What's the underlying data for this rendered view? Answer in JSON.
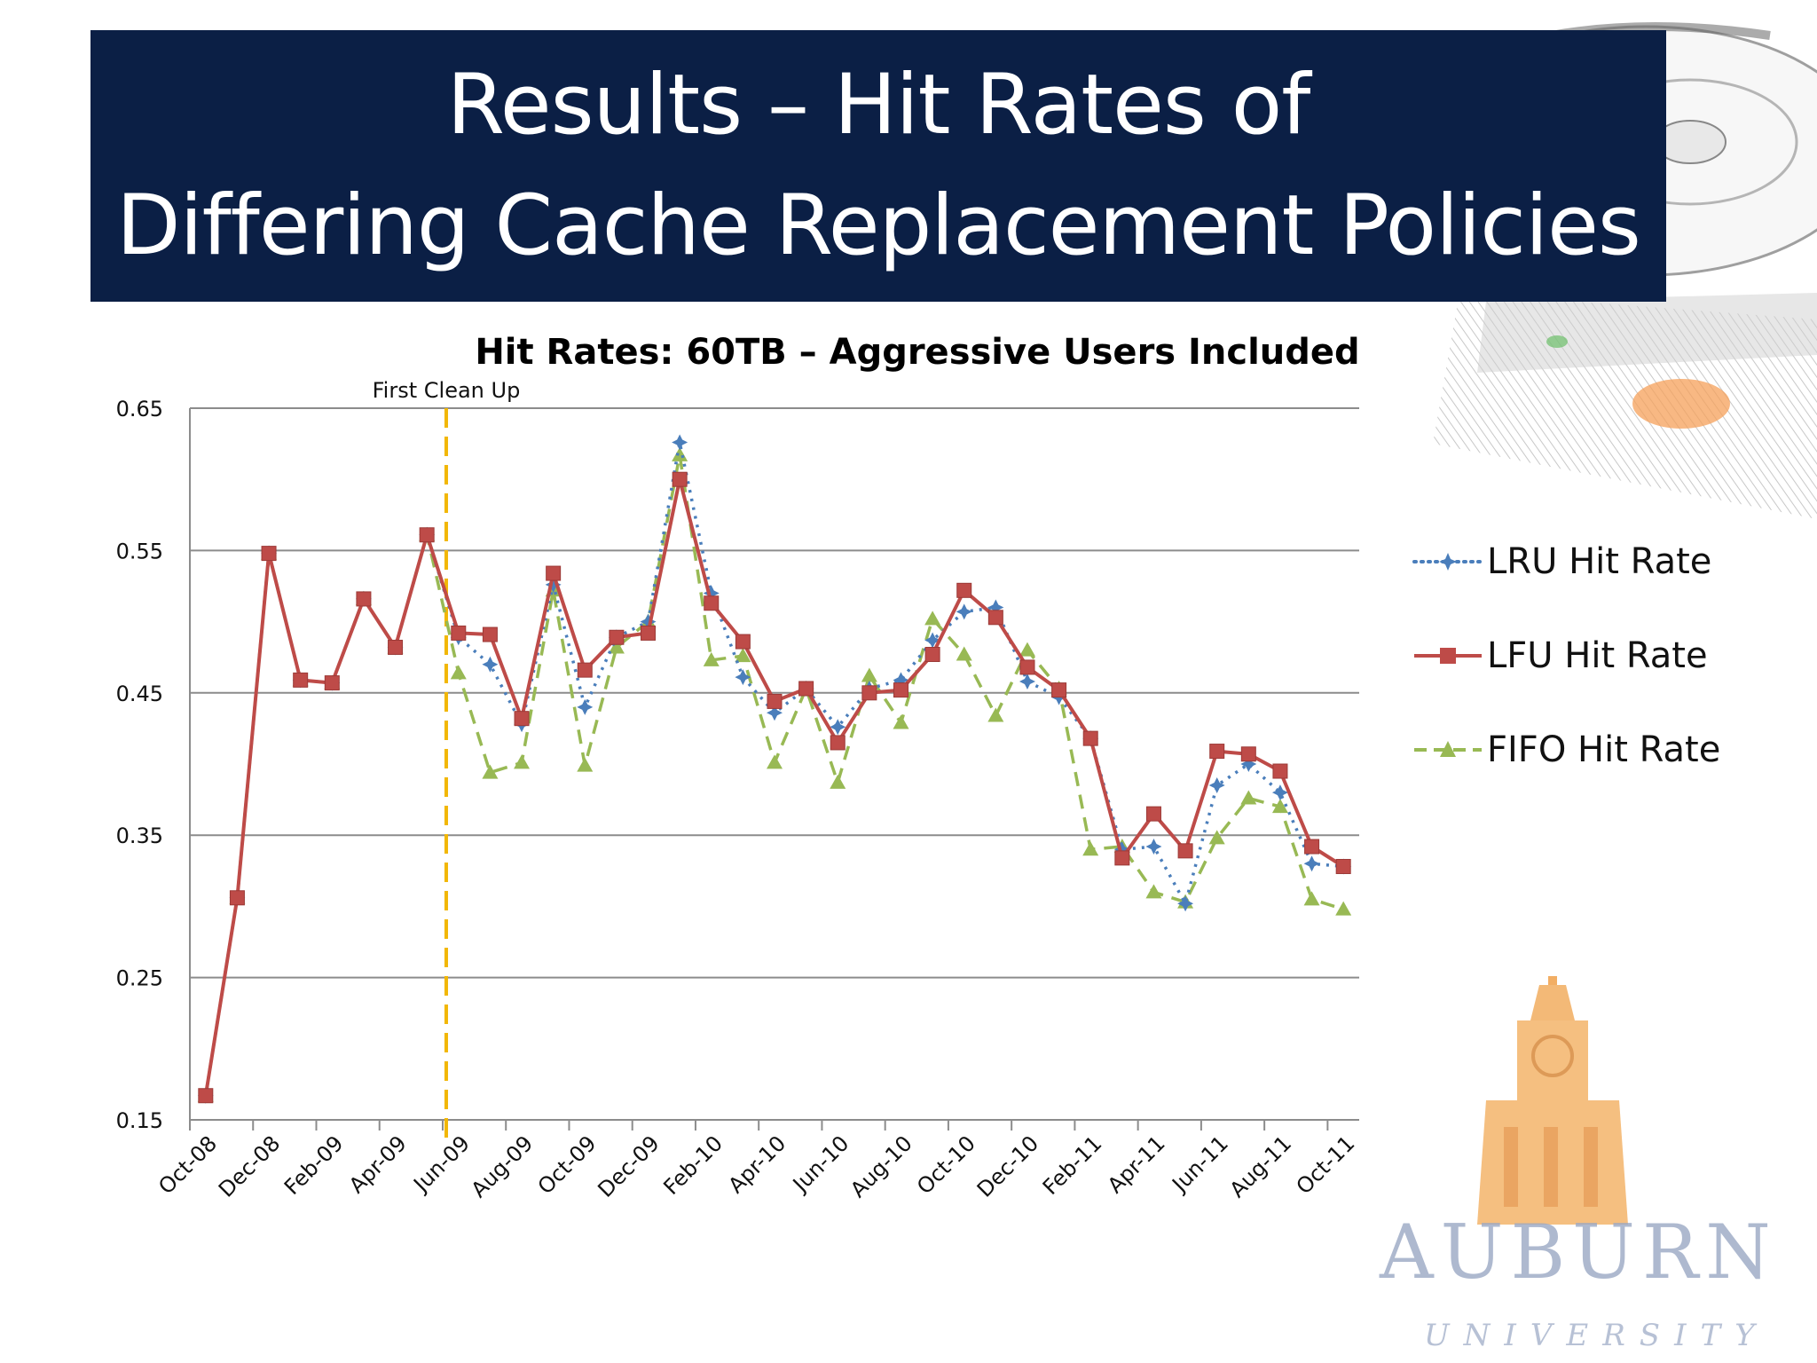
{
  "slide": {
    "title_line1": "Results – Hit Rates of",
    "title_line2": "Differing Cache Replacement Policies",
    "logo_text": "AUBURN",
    "logo_subtext": "UNIVERSITY"
  },
  "colors": {
    "banner": "#0b1f45",
    "lru": "#4a7ebb",
    "lfu": "#be4b48",
    "fifo": "#98b954",
    "cleanup_line": "#f2b705",
    "grid": "#8c8c8c"
  },
  "chart_data": {
    "type": "line",
    "title": "Hit Rates: 60TB – Aggressive Users Included",
    "xlabel": "",
    "ylabel": "",
    "ylim": [
      0.15,
      0.65
    ],
    "yticks": [
      0.15,
      0.25,
      0.35,
      0.45,
      0.55,
      0.65
    ],
    "ytick_labels": [
      "0.15",
      "0.25",
      "0.35",
      "0.45",
      "0.55",
      "0.65"
    ],
    "grid": true,
    "legend_position": "right",
    "categories": [
      "Oct-08",
      "Nov-08",
      "Dec-08",
      "Jan-09",
      "Feb-09",
      "Mar-09",
      "Apr-09",
      "May-09",
      "Jun-09",
      "Jul-09",
      "Aug-09",
      "Sep-09",
      "Oct-09",
      "Nov-09",
      "Dec-09",
      "Jan-10",
      "Feb-10",
      "Mar-10",
      "Apr-10",
      "May-10",
      "Jun-10",
      "Jul-10",
      "Aug-10",
      "Sep-10",
      "Oct-10",
      "Nov-10",
      "Dec-10",
      "Jan-11",
      "Feb-11",
      "Mar-11",
      "Apr-11",
      "May-11",
      "Jun-11",
      "Jul-11",
      "Aug-11",
      "Sep-11",
      "Oct-11"
    ],
    "xtick_labels": [
      "Oct-08",
      "Dec-08",
      "Feb-09",
      "Apr-09",
      "Jun-09",
      "Aug-09",
      "Oct-09",
      "Dec-09",
      "Feb-10",
      "Apr-10",
      "Jun-10",
      "Aug-10",
      "Oct-10",
      "Dec-10",
      "Feb-11",
      "Apr-11",
      "Jun-11",
      "Aug-11",
      "Oct-11"
    ],
    "series": [
      {
        "name": "LRU Hit Rate",
        "style": "dotted",
        "marker": "star",
        "values": [
          0.167,
          0.306,
          0.548,
          0.459,
          0.457,
          0.516,
          0.482,
          0.561,
          0.489,
          0.47,
          0.428,
          0.526,
          0.44,
          0.489,
          0.5,
          0.626,
          0.52,
          0.461,
          0.436,
          0.453,
          0.426,
          0.453,
          0.459,
          0.487,
          0.507,
          0.51,
          0.458,
          0.447,
          0.418,
          0.34,
          0.342,
          0.302,
          0.385,
          0.4,
          0.38,
          0.33,
          0.328
        ]
      },
      {
        "name": "LFU Hit Rate",
        "style": "solid",
        "marker": "square",
        "values": [
          0.167,
          0.306,
          0.548,
          0.459,
          0.457,
          0.516,
          0.482,
          0.561,
          0.492,
          0.491,
          0.432,
          0.534,
          0.466,
          0.489,
          0.492,
          0.6,
          0.513,
          0.486,
          0.444,
          0.453,
          0.415,
          0.45,
          0.452,
          0.477,
          0.522,
          0.503,
          0.468,
          0.452,
          0.418,
          0.334,
          0.365,
          0.339,
          0.409,
          0.407,
          0.395,
          0.342,
          0.328
        ]
      },
      {
        "name": "FIFO Hit Rate",
        "style": "dashed",
        "marker": "triangle",
        "values": [
          0.167,
          0.306,
          0.548,
          0.459,
          0.457,
          0.516,
          0.482,
          0.561,
          0.464,
          0.394,
          0.401,
          0.522,
          0.399,
          0.482,
          0.5,
          0.617,
          0.473,
          0.476,
          0.401,
          0.453,
          0.387,
          0.462,
          0.429,
          0.502,
          0.477,
          0.434,
          0.48,
          0.453,
          0.34,
          0.342,
          0.31,
          0.303,
          0.348,
          0.376,
          0.37,
          0.305,
          0.298
        ]
      }
    ],
    "annotations": [
      {
        "text": "First Clean Up",
        "x": "Jun-09"
      }
    ]
  }
}
